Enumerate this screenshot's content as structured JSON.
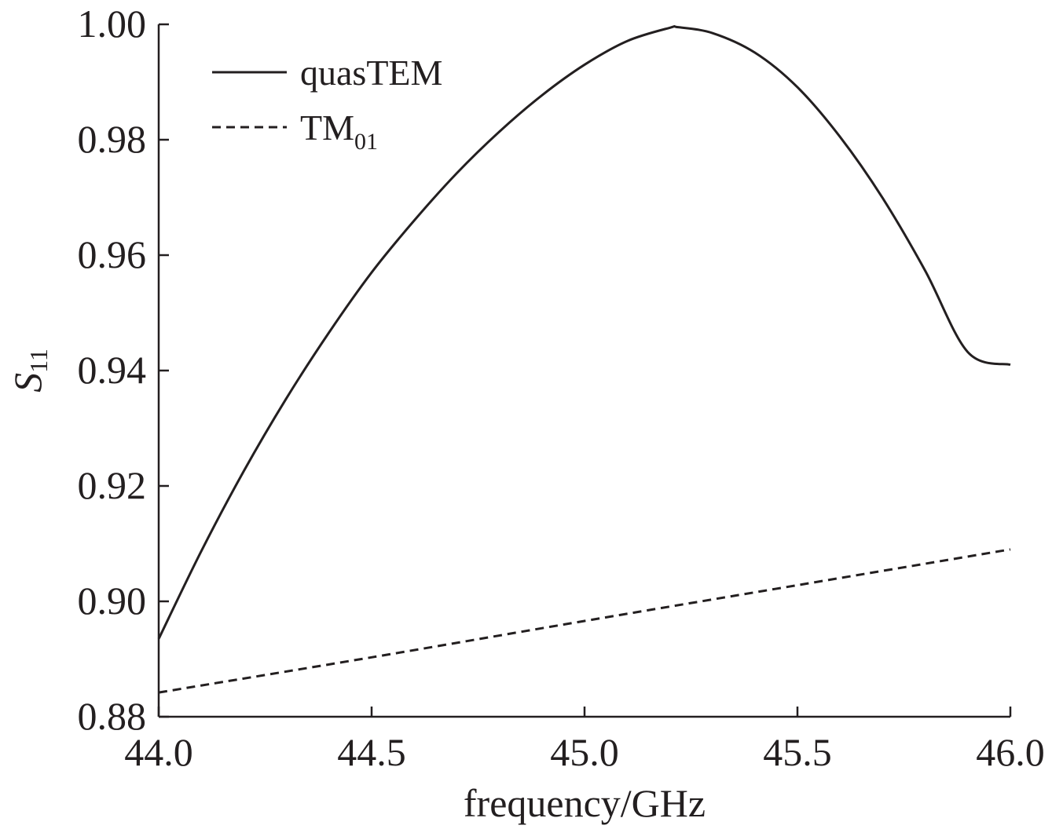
{
  "chart_data": {
    "type": "line",
    "xlabel": "frequency/GHz",
    "ylabel": {
      "main": "S",
      "sub": "11"
    },
    "xlim": [
      44.0,
      46.0
    ],
    "ylim": [
      0.88,
      1.0
    ],
    "x_ticks": [
      "44.0",
      "44.5",
      "45.0",
      "45.5",
      "46.0"
    ],
    "y_ticks": [
      "0.88",
      "0.90",
      "0.92",
      "0.94",
      "0.96",
      "0.98",
      "1.00"
    ],
    "grid": false,
    "legend_position": "top-left",
    "series": [
      {
        "name": "quasTEM",
        "style": "solid",
        "color": "#231f20",
        "x": [
          44.0,
          44.1,
          44.2,
          44.3,
          44.4,
          44.5,
          44.6,
          44.7,
          44.8,
          44.9,
          45.0,
          45.1,
          45.2,
          45.22,
          45.3,
          45.4,
          45.5,
          45.6,
          45.7,
          45.8,
          45.9,
          46.0
        ],
        "y": [
          0.8935,
          0.9087,
          0.9226,
          0.9352,
          0.9466,
          0.957,
          0.966,
          0.9742,
          0.9814,
          0.9877,
          0.993,
          0.9971,
          0.9994,
          0.9995,
          0.9985,
          0.9951,
          0.9891,
          0.9805,
          0.9699,
          0.9573,
          0.9432,
          0.941
        ]
      },
      {
        "name": "TM",
        "name_sub": "01",
        "style": "dashed",
        "color": "#231f20",
        "x": [
          44.0,
          44.5,
          45.0,
          45.5,
          46.0
        ],
        "y": [
          0.8842,
          0.8903,
          0.8966,
          0.9028,
          0.909
        ]
      }
    ]
  }
}
